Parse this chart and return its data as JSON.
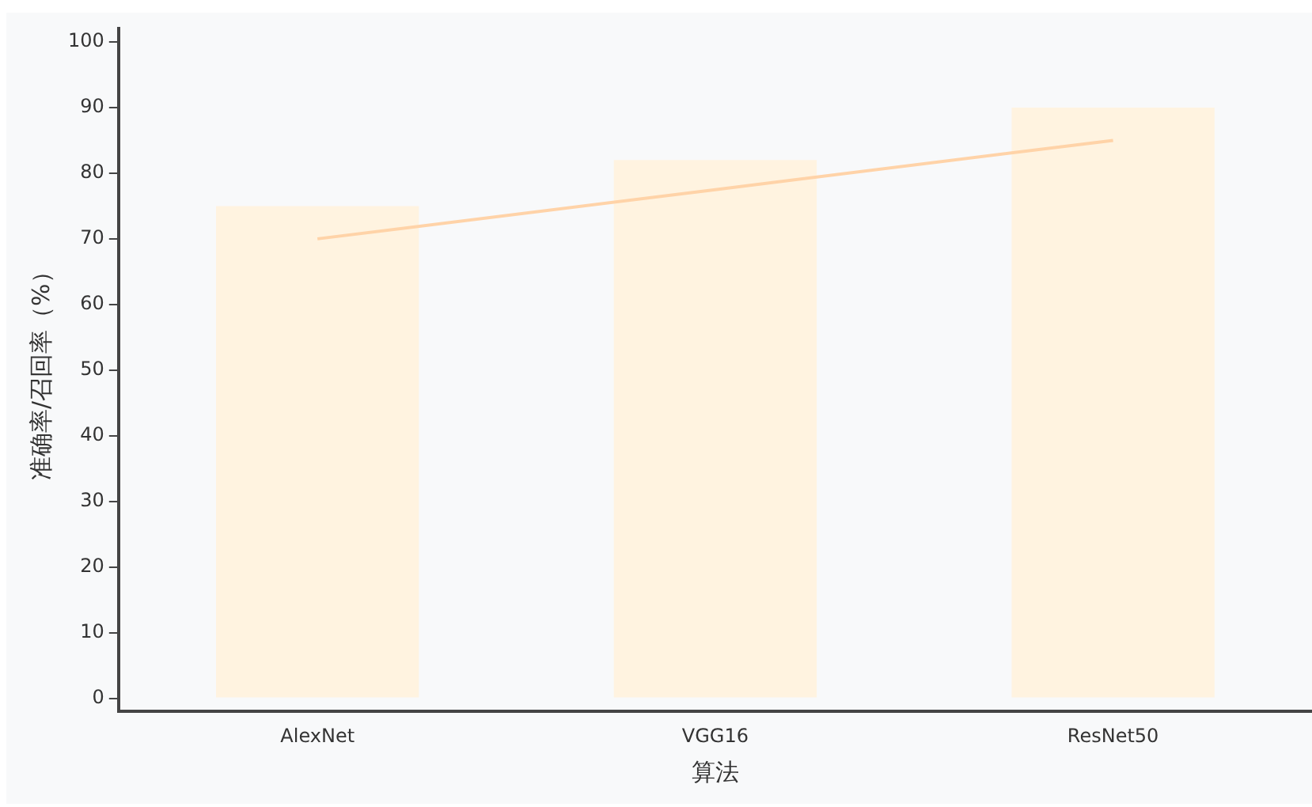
{
  "chart_data": {
    "type": "bar",
    "xlabel": "算法",
    "ylabel": "准确率/召回率（%）",
    "categories": [
      "AlexNet",
      "VGG16",
      "ResNet50"
    ],
    "series": [
      {
        "color": "#fff3e0",
        "values": [
          75,
          82,
          90
        ]
      },
      {
        "type": "line",
        "color": "#ffd3a8",
        "values": [
          70,
          77.5,
          85
        ]
      }
    ],
    "ylim": [
      -2,
      102
    ],
    "yticks": [
      0,
      10,
      20,
      30,
      40,
      50,
      60,
      70,
      80,
      90,
      100
    ],
    "grid": false,
    "legend": false,
    "marker": "none"
  }
}
